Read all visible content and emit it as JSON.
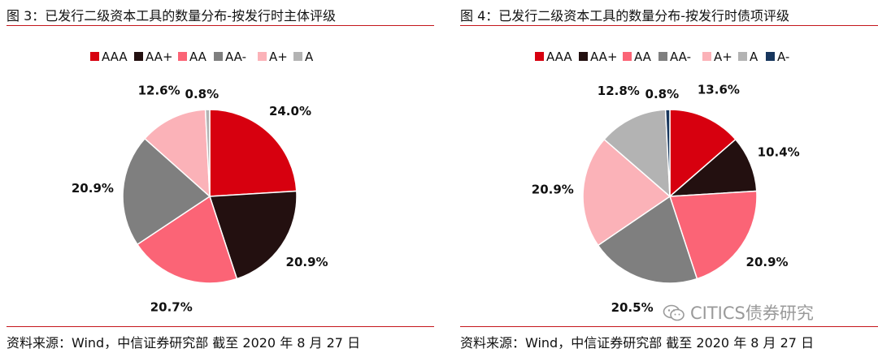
{
  "chart_data": [
    {
      "type": "pie",
      "title": "图 3：已发行二级资本工具的数量分布-按发行时主体评级",
      "source": "资料来源：Wind，中信证券研究部  截至 2020 年 8 月 27 日",
      "legend_position": "top",
      "slices": [
        {
          "label": "AAA",
          "value": 24.0,
          "display": "24.0%",
          "color": "#d7000f"
        },
        {
          "label": "AA+",
          "value": 20.9,
          "display": "20.9%",
          "color": "#231010"
        },
        {
          "label": "AA",
          "value": 20.7,
          "display": "20.7%",
          "color": "#fb6476"
        },
        {
          "label": "AA-",
          "value": 20.9,
          "display": "20.9%",
          "color": "#7f7f7f"
        },
        {
          "label": "A+",
          "value": 12.6,
          "display": "12.6%",
          "color": "#fbb2b8"
        },
        {
          "label": "A",
          "value": 0.8,
          "display": "0.8%",
          "color": "#b3b3b3"
        }
      ]
    },
    {
      "type": "pie",
      "title": "图 4：已发行二级资本工具的数量分布-按发行时债项评级",
      "source": "资料来源：Wind，中信证券研究部  截至 2020 年 8 月 27 日",
      "legend_position": "top",
      "slices": [
        {
          "label": "AAA",
          "value": 13.6,
          "display": "13.6%",
          "color": "#d7000f"
        },
        {
          "label": "AA+",
          "value": 10.4,
          "display": "10.4%",
          "color": "#231010"
        },
        {
          "label": "AA",
          "value": 20.9,
          "display": "20.9%",
          "color": "#fb6476"
        },
        {
          "label": "AA-",
          "value": 20.5,
          "display": "20.5%",
          "color": "#7f7f7f"
        },
        {
          "label": "A+",
          "value": 20.9,
          "display": "20.9%",
          "color": "#fbb2b8"
        },
        {
          "label": "A",
          "value": 12.8,
          "display": "12.8%",
          "color": "#b3b3b3"
        },
        {
          "label": "A-",
          "value": 0.8,
          "display": "0.8%",
          "color": "#17365d"
        }
      ]
    }
  ],
  "watermark": {
    "text": "CITICS债券研究",
    "icon": "wechat-icon"
  }
}
